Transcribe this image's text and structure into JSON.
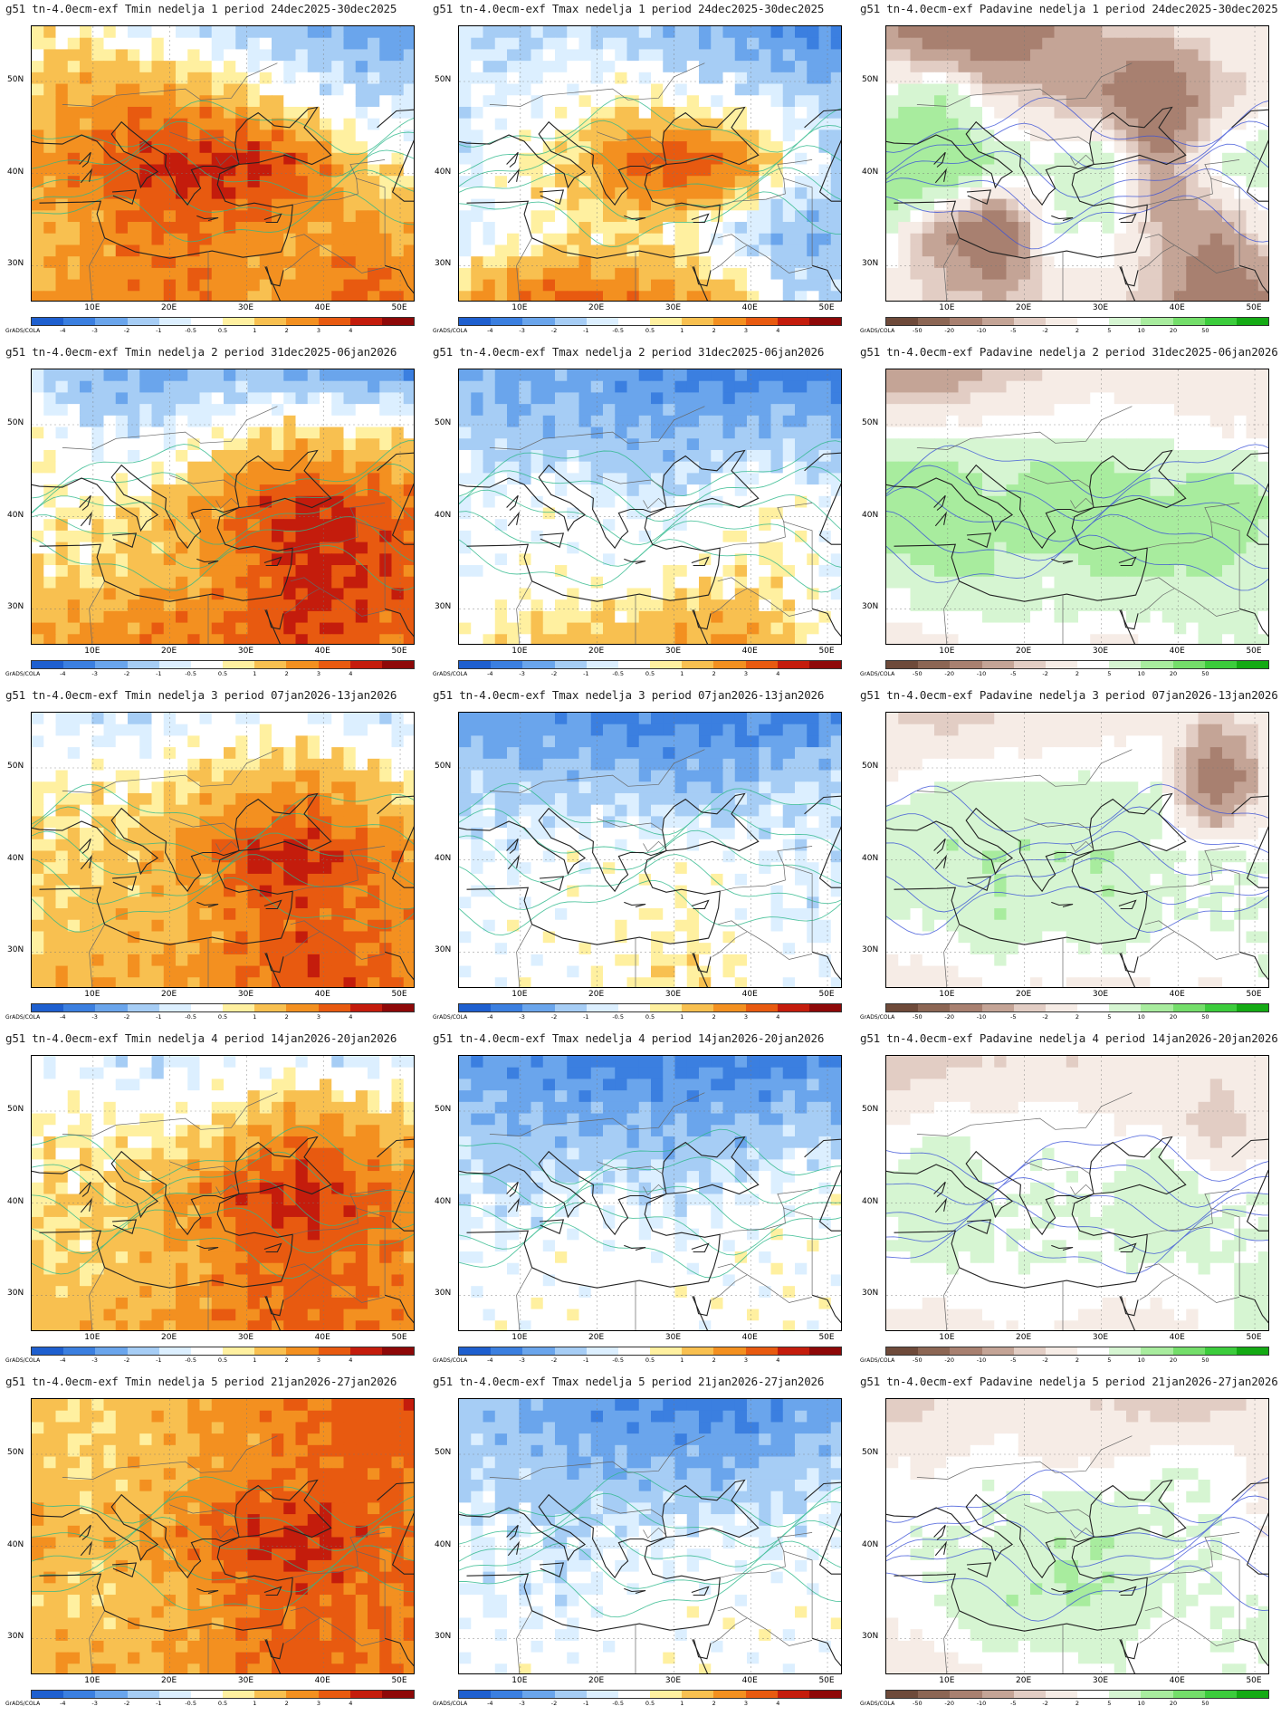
{
  "figure": {
    "model_label": "g51 tn-4.0ecm-exf",
    "x_ticks": [
      "10E",
      "20E",
      "30E",
      "40E",
      "50E"
    ],
    "y_ticks": [
      "50N",
      "40N",
      "30N"
    ],
    "colorbar_credit": "GrADS/COLA"
  },
  "variables": [
    {
      "key": "tmin",
      "name": "Tmin",
      "scale": [
        "-4",
        "-3",
        "-2",
        "-1",
        "-0.5",
        "0.5",
        "1",
        "2",
        "3",
        "4"
      ],
      "colors": [
        "#1e5fcf",
        "#3b7fe0",
        "#6aa5ec",
        "#a6cdf5",
        "#dcefff",
        "#ffffff",
        "#fff0a0",
        "#f8c050",
        "#f39020",
        "#e85a10",
        "#c41c0c",
        "#8e0808"
      ]
    },
    {
      "key": "tmax",
      "name": "Tmax",
      "scale": [
        "-4",
        "-3",
        "-2",
        "-1",
        "-0.5",
        "0.5",
        "1",
        "2",
        "3",
        "4"
      ],
      "colors": [
        "#1e5fcf",
        "#3b7fe0",
        "#6aa5ec",
        "#a6cdf5",
        "#dcefff",
        "#ffffff",
        "#fff0a0",
        "#f8c050",
        "#f39020",
        "#e85a10",
        "#c41c0c",
        "#8e0808"
      ]
    },
    {
      "key": "precip",
      "name": "Padavine",
      "scale": [
        "-50",
        "-20",
        "-10",
        "-5",
        "-2",
        "2",
        "5",
        "10",
        "20",
        "50"
      ],
      "colors": [
        "#6e4a3a",
        "#8c6654",
        "#a88070",
        "#c4a496",
        "#e2cdc4",
        "#f6ece6",
        "#ffffff",
        "#d6f5d2",
        "#a8ec9e",
        "#74de6a",
        "#3ccc3c",
        "#14aa14"
      ]
    }
  ],
  "weeks": [
    {
      "week": "1",
      "period": "24dec2025-30dec2025"
    },
    {
      "week": "2",
      "period": "31dec2025-06jan2026"
    },
    {
      "week": "3",
      "period": "07jan2026-13jan2026"
    },
    {
      "week": "4",
      "period": "14jan2026-20jan2026"
    },
    {
      "week": "5",
      "period": "21jan2026-27jan2026"
    }
  ],
  "panels": [
    {
      "title": "g51 tn-4.0ecm-exf Tmin nedelja 1 period 24dec2025-30dec2025",
      "variable": "tmin",
      "week": 1
    },
    {
      "title": "g51 tn-4.0ecm-exf Tmax nedelja 1 period 24dec2025-30dec2025",
      "variable": "tmax",
      "week": 1
    },
    {
      "title": "g51 tn-4.0ecm-exf Padavine nedelja 1 period 24dec2025-30dec2025",
      "variable": "precip",
      "week": 1
    },
    {
      "title": "g51 tn-4.0ecm-exf Tmin nedelja 2 period 31dec2025-06jan2026",
      "variable": "tmin",
      "week": 2
    },
    {
      "title": "g51 tn-4.0ecm-exf Tmax nedelja 2 period 31dec2025-06jan2026",
      "variable": "tmax",
      "week": 2
    },
    {
      "title": "g51 tn-4.0ecm-exf Padavine nedelja 2 period 31dec2025-06jan2026",
      "variable": "precip",
      "week": 2
    },
    {
      "title": "g51 tn-4.0ecm-exf Tmin nedelja 3 period 07jan2026-13jan2026",
      "variable": "tmin",
      "week": 3
    },
    {
      "title": "g51 tn-4.0ecm-exf Tmax nedelja 3 period 07jan2026-13jan2026",
      "variable": "tmax",
      "week": 3
    },
    {
      "title": "g51 tn-4.0ecm-exf Padavine nedelja 3 period 07jan2026-13jan2026",
      "variable": "precip",
      "week": 3
    },
    {
      "title": "g51 tn-4.0ecm-exf Tmin nedelja 4 period 14jan2026-20jan2026",
      "variable": "tmin",
      "week": 4
    },
    {
      "title": "g51 tn-4.0ecm-exf Tmax nedelja 4 period 14jan2026-20jan2026",
      "variable": "tmax",
      "week": 4
    },
    {
      "title": "g51 tn-4.0ecm-exf Padavine nedelja 4 period 14jan2026-20jan2026",
      "variable": "precip",
      "week": 4
    },
    {
      "title": "g51 tn-4.0ecm-exf Tmin nedelja 5 period 21jan2026-27jan2026",
      "variable": "tmin",
      "week": 5
    },
    {
      "title": "g51 tn-4.0ecm-exf Tmax nedelja 5 period 21jan2026-27jan2026",
      "variable": "tmax",
      "week": 5
    },
    {
      "title": "g51 tn-4.0ecm-exf Padavine nedelja 5 period 21jan2026-27jan2026",
      "variable": "precip",
      "week": 5
    }
  ],
  "anomaly_fields": {
    "tmin": [
      [
        [
          0.5,
          0.5,
          -0.5,
          -1,
          -1.5,
          -2,
          -2.5,
          -3
        ],
        [
          1.5,
          2,
          2.5,
          2,
          1,
          0,
          -1,
          -1
        ],
        [
          2,
          3,
          4,
          4.5,
          4.5,
          3.5,
          1,
          0.5
        ],
        [
          1.5,
          2,
          3,
          3,
          2.5,
          2,
          2.5,
          1.5
        ],
        [
          2,
          2.5,
          2.5,
          3,
          2,
          2.5,
          3.5,
          3
        ]
      ],
      [
        [
          -1,
          -2,
          -2.5,
          -2,
          -2,
          -2.5,
          -2.5,
          -3
        ],
        [
          0.5,
          -0.5,
          -0.5,
          0,
          1,
          1.5,
          1,
          1
        ],
        [
          0.5,
          0.5,
          1,
          2,
          3.5,
          4.5,
          4,
          3
        ],
        [
          1,
          1,
          1.5,
          2,
          3,
          4.5,
          4,
          3.5
        ],
        [
          2,
          2.5,
          3,
          3,
          3.5,
          4,
          3.5,
          3
        ]
      ],
      [
        [
          -0.5,
          -1,
          -1,
          -0.5,
          -0.5,
          -0.5,
          -1,
          -1
        ],
        [
          0.5,
          0.5,
          0.5,
          1,
          1.5,
          2,
          1.5,
          0.5
        ],
        [
          1,
          1,
          1.5,
          2.5,
          4,
          4.5,
          3.5,
          2
        ],
        [
          1,
          1.5,
          1.5,
          2,
          3,
          3.5,
          3,
          2.5
        ],
        [
          1.5,
          2,
          2,
          2.5,
          3,
          4,
          3.5,
          2.5
        ]
      ],
      [
        [
          -0.5,
          -0.5,
          -1,
          -0.5,
          -0.5,
          -0.5,
          -1,
          -0.5
        ],
        [
          0.5,
          0.5,
          0.5,
          0.5,
          1.5,
          2.5,
          2,
          1
        ],
        [
          1,
          1,
          1.5,
          2.5,
          4,
          4.5,
          3.5,
          2.5
        ],
        [
          1,
          1,
          1.5,
          2,
          3,
          3.5,
          3,
          2.5
        ],
        [
          1.5,
          2,
          2,
          2.5,
          3,
          3.5,
          3,
          2.5
        ]
      ],
      [
        [
          1.5,
          1,
          1.5,
          2,
          2.5,
          3,
          3.5,
          4
        ],
        [
          1.5,
          1,
          1.5,
          2,
          2.5,
          3,
          3.5,
          3
        ],
        [
          2,
          1.5,
          2,
          3,
          4,
          4.5,
          3.5,
          3
        ],
        [
          1.5,
          1,
          1.5,
          2,
          3,
          3.5,
          3,
          3
        ],
        [
          2,
          2,
          2,
          2.5,
          3,
          3.5,
          3,
          3
        ]
      ]
    ],
    "tmax": [
      [
        [
          -1,
          -1.5,
          -1,
          -1.5,
          -2,
          -2.5,
          -3,
          -3.5
        ],
        [
          -0.5,
          -0.5,
          0,
          0.5,
          0,
          -0.5,
          -1,
          -1.5
        ],
        [
          -1,
          0.5,
          1,
          3,
          4,
          3,
          0.5,
          -1
        ],
        [
          -1,
          0,
          0.5,
          1,
          0.5,
          -1,
          -2,
          -2
        ],
        [
          2,
          3,
          3.5,
          3,
          2.5,
          1.5,
          -0.5,
          -1
        ]
      ],
      [
        [
          -2,
          -2.5,
          -2.5,
          -3,
          -3,
          -3.5,
          -3.5,
          -3.5
        ],
        [
          -1,
          -1.5,
          -1.5,
          -2,
          -2,
          -1.5,
          -1.5,
          -2
        ],
        [
          -0.5,
          0,
          0,
          -0.5,
          -0.5,
          0,
          0.5,
          -0.5
        ],
        [
          -0.5,
          0,
          0,
          0,
          0.5,
          0.5,
          0.5,
          -0.5
        ],
        [
          0.5,
          1,
          1.5,
          1.5,
          2,
          2.5,
          1,
          0
        ]
      ],
      [
        [
          -2.5,
          -3,
          -3,
          -3.5,
          -3.5,
          -3.5,
          -3.5,
          -3.5
        ],
        [
          -1,
          -1.5,
          -1.5,
          -1.5,
          -2,
          -2,
          -1,
          -1
        ],
        [
          -0.5,
          -0.5,
          0,
          0,
          0,
          0,
          -0.5,
          -0.5
        ],
        [
          -0.5,
          0,
          0,
          0,
          0.5,
          0,
          -0.5,
          -0.5
        ],
        [
          0,
          0,
          0,
          0.5,
          1,
          0.5,
          0,
          -0.5
        ]
      ],
      [
        [
          -2.5,
          -3,
          -3,
          -3.5,
          -3.5,
          -3.5,
          -3.5,
          -3
        ],
        [
          -1.5,
          -2,
          -2,
          -2,
          -2,
          -2,
          -1.5,
          -1.5
        ],
        [
          -0.5,
          -1,
          -0.5,
          -0.5,
          -1,
          -0.5,
          0,
          0
        ],
        [
          -0.5,
          0,
          0,
          0,
          0,
          0,
          0,
          0
        ],
        [
          0,
          0,
          0,
          0,
          0,
          0,
          0,
          0
        ]
      ],
      [
        [
          -1.5,
          -2,
          -2.5,
          -3,
          -3.5,
          -3.5,
          -3,
          -2.5
        ],
        [
          -1,
          -1.5,
          -2,
          -2,
          -2,
          -2,
          -1.5,
          -1
        ],
        [
          -0.5,
          -0.5,
          -1,
          -0.5,
          -0.5,
          -0.5,
          -0.5,
          0
        ],
        [
          -0.5,
          -0.5,
          -0.5,
          0,
          0,
          0,
          0,
          0
        ],
        [
          0,
          0,
          0,
          0,
          0,
          0,
          0,
          0
        ]
      ]
    ],
    "precip": [
      [
        [
          -10,
          -20,
          -20,
          -10,
          -5,
          -2,
          0,
          0
        ],
        [
          5,
          10,
          -2,
          -5,
          -10,
          -20,
          -5,
          0
        ],
        [
          20,
          20,
          10,
          5,
          10,
          -10,
          5,
          10
        ],
        [
          5,
          -10,
          -20,
          5,
          5,
          -5,
          -10,
          0
        ],
        [
          0,
          -2,
          -5,
          -2,
          0,
          -5,
          -20,
          -10
        ]
      ],
      [
        [
          -10,
          -10,
          -5,
          -2,
          0,
          -2,
          0,
          0
        ],
        [
          5,
          5,
          5,
          5,
          5,
          5,
          2,
          2
        ],
        [
          20,
          20,
          10,
          20,
          20,
          10,
          20,
          10
        ],
        [
          5,
          10,
          10,
          5,
          10,
          10,
          10,
          5
        ],
        [
          0,
          0,
          2,
          5,
          0,
          2,
          5,
          5
        ]
      ],
      [
        [
          -2,
          -5,
          -2,
          -2,
          0,
          0,
          -2,
          0
        ],
        [
          2,
          5,
          5,
          5,
          5,
          5,
          -20,
          0
        ],
        [
          10,
          10,
          10,
          10,
          10,
          5,
          5,
          5
        ],
        [
          5,
          5,
          10,
          5,
          10,
          5,
          5,
          5
        ],
        [
          0,
          0,
          2,
          2,
          0,
          2,
          2,
          5
        ]
      ],
      [
        [
          -5,
          -5,
          -2,
          -2,
          -2,
          0,
          0,
          -2
        ],
        [
          2,
          5,
          2,
          5,
          2,
          2,
          -5,
          0
        ],
        [
          5,
          10,
          5,
          5,
          5,
          10,
          5,
          5
        ],
        [
          5,
          5,
          5,
          5,
          5,
          5,
          5,
          5
        ],
        [
          0,
          0,
          2,
          2,
          0,
          0,
          2,
          10
        ]
      ],
      [
        [
          -5,
          -2,
          -2,
          -2,
          -2,
          -5,
          -5,
          0
        ],
        [
          2,
          2,
          5,
          2,
          2,
          5,
          5,
          0
        ],
        [
          5,
          5,
          5,
          10,
          10,
          5,
          5,
          2
        ],
        [
          2,
          5,
          10,
          10,
          10,
          5,
          5,
          5
        ],
        [
          0,
          0,
          2,
          2,
          5,
          2,
          5,
          5
        ]
      ]
    ]
  }
}
